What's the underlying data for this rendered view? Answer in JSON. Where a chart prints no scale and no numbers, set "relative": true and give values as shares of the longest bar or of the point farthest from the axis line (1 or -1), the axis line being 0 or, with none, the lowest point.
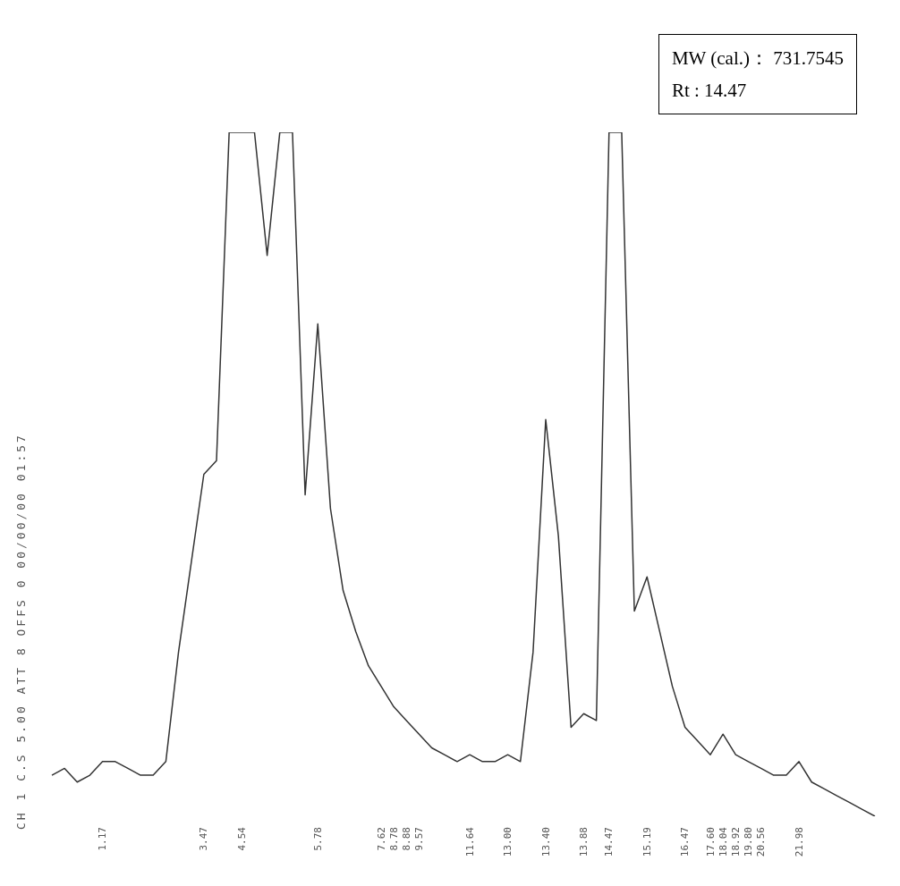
{
  "chart_data": {
    "type": "line",
    "relative": true,
    "color": "#333333",
    "marker": "none",
    "categories": [
      null,
      null,
      null,
      null,
      "1.17",
      null,
      null,
      null,
      null,
      null,
      null,
      null,
      "3.47",
      null,
      null,
      "4.54",
      null,
      null,
      null,
      null,
      null,
      "5.78",
      null,
      null,
      null,
      null,
      "7.62",
      "8.78",
      "8.88",
      "9.57",
      null,
      null,
      null,
      "11.64",
      null,
      null,
      "13.00",
      null,
      null,
      "13.40",
      null,
      null,
      "13.88",
      null,
      "14.47",
      null,
      null,
      "15.19",
      null,
      null,
      "16.47",
      null,
      "17.60",
      "18.04",
      "18.92",
      "19.80",
      "20.56",
      null,
      null,
      "21.98",
      null,
      null,
      null,
      null,
      null,
      null
    ],
    "values": [
      0.06,
      0.07,
      0.05,
      0.06,
      0.08,
      0.08,
      0.07,
      0.06,
      0.06,
      0.08,
      0.24,
      0.37,
      0.5,
      0.52,
      1,
      1,
      1,
      0.82,
      1,
      1,
      0.47,
      0.72,
      0.45,
      0.33,
      0.27,
      0.22,
      0.19,
      0.16,
      0.14,
      0.12,
      0.1,
      0.09,
      0.08,
      0.09,
      0.08,
      0.08,
      0.09,
      0.08,
      0.24,
      0.58,
      0.41,
      0.13,
      0.15,
      0.14,
      1,
      1,
      0.3,
      0.35,
      0.27,
      0.19,
      0.13,
      0.11,
      0.09,
      0.12,
      0.09,
      0.08,
      0.07,
      0.06,
      0.06,
      0.08,
      0.05,
      0.04,
      0.03,
      0.02,
      0.01,
      0
    ],
    "annotations": [
      "MW (cal.)： 731.7545",
      "Rt : 14.47",
      "CH 1 C.S 5.00 ATT 8 OFFS 0 00/00/00 01:57"
    ]
  }
}
